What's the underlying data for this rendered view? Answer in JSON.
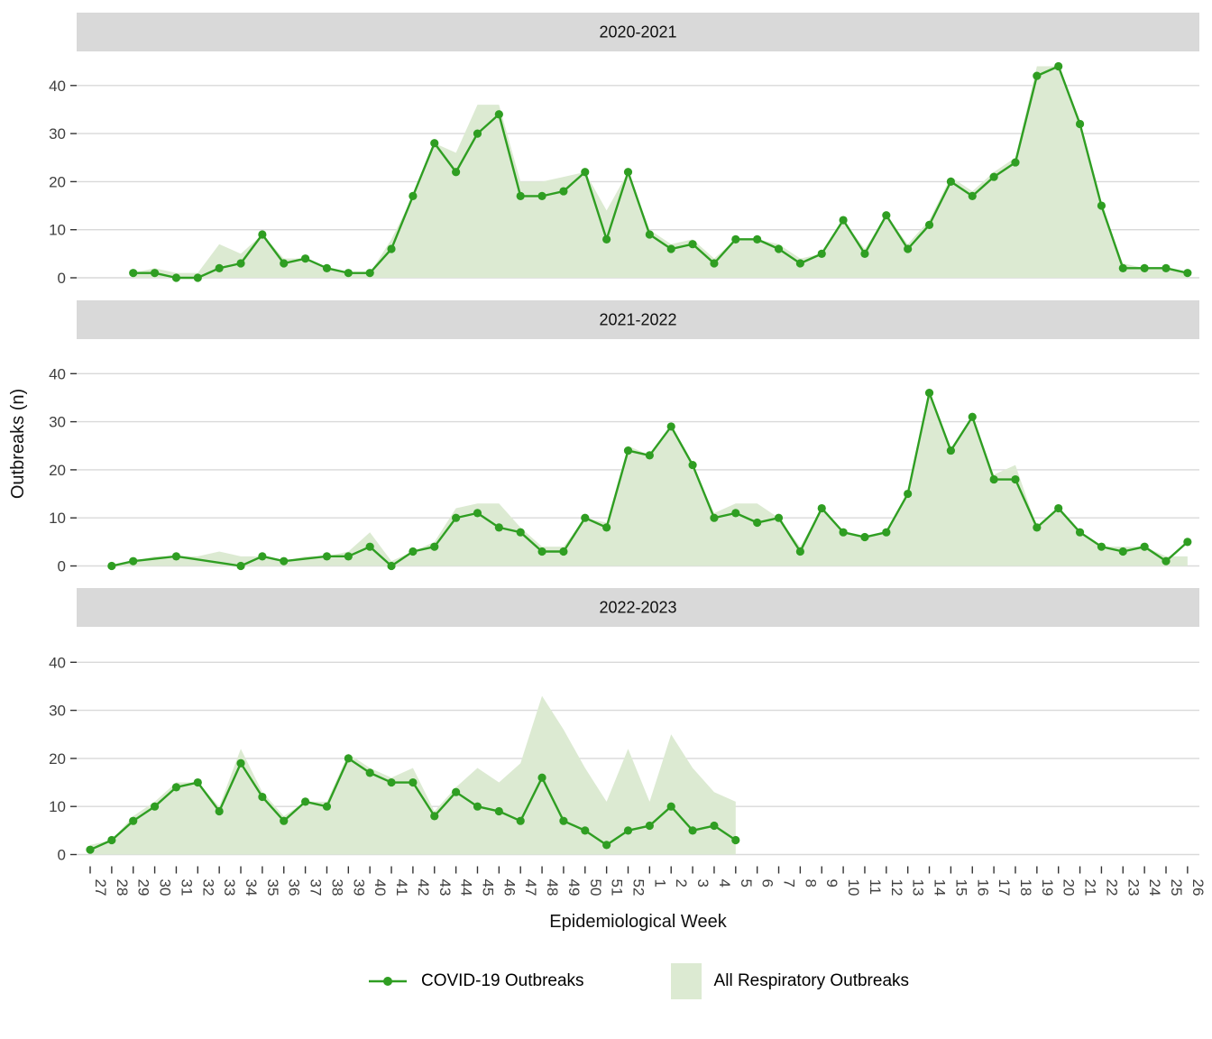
{
  "chart_data": {
    "type": "area+line",
    "facet_layout": "3 stacked panels sharing x axis",
    "xlabel": "Epidemiological Week",
    "ylabel": "Outbreaks (n)",
    "y_ticks": [
      0,
      10,
      20,
      30,
      40
    ],
    "ylim": [
      0,
      47
    ],
    "grid": "horizontal only",
    "x_categories": [
      "27",
      "28",
      "29",
      "30",
      "31",
      "32",
      "33",
      "34",
      "35",
      "36",
      "37",
      "38",
      "39",
      "40",
      "41",
      "42",
      "43",
      "44",
      "45",
      "46",
      "47",
      "48",
      "49",
      "50",
      "51",
      "52",
      "1",
      "2",
      "3",
      "4",
      "5",
      "6",
      "7",
      "8",
      "9",
      "10",
      "11",
      "12",
      "13",
      "14",
      "15",
      "16",
      "17",
      "18",
      "19",
      "20",
      "21",
      "22",
      "23",
      "24",
      "25",
      "26"
    ],
    "legend": {
      "position": "bottom",
      "covid_label": "COVID-19 Outbreaks",
      "area_label": "All Respiratory Outbreaks"
    },
    "colors": {
      "line": "#2f9e22",
      "point": "#2f9e22",
      "area": "#dcead2",
      "strip_bg": "#d9d9d9",
      "grid": "#d9d9d9",
      "tick": "#333333",
      "axis_text": "#404040",
      "title_text": "#111111"
    },
    "panels": [
      {
        "title": "2020-2021",
        "series": {
          "covid": [
            null,
            null,
            1,
            1,
            0,
            0,
            2,
            3,
            9,
            3,
            4,
            2,
            1,
            1,
            6,
            17,
            28,
            22,
            30,
            34,
            17,
            17,
            18,
            22,
            8,
            22,
            9,
            6,
            7,
            3,
            8,
            8,
            6,
            3,
            5,
            12,
            5,
            13,
            6,
            11,
            20,
            17,
            21,
            24,
            42,
            44,
            32,
            15,
            2,
            2,
            2,
            1
          ],
          "all_respiratory": [
            null,
            null,
            1,
            2,
            1,
            1,
            7,
            5,
            9,
            4,
            4,
            2,
            1,
            1,
            8,
            17,
            28,
            26,
            36,
            36,
            20,
            20,
            21,
            22,
            14,
            22,
            10,
            7,
            8,
            4,
            8,
            8,
            7,
            4,
            5,
            12,
            6,
            13,
            7,
            12,
            21,
            18,
            22,
            25,
            44,
            44,
            32,
            15,
            3,
            2,
            2,
            1
          ]
        }
      },
      {
        "title": "2021-2022",
        "series": {
          "covid": [
            null,
            0,
            1,
            null,
            2,
            null,
            null,
            0,
            2,
            1,
            null,
            2,
            2,
            4,
            0,
            3,
            4,
            10,
            11,
            8,
            7,
            3,
            3,
            10,
            8,
            24,
            23,
            29,
            21,
            10,
            11,
            9,
            10,
            3,
            12,
            7,
            6,
            7,
            15,
            36,
            24,
            31,
            18,
            18,
            8,
            12,
            7,
            4,
            3,
            4,
            1,
            5
          ],
          "all_respiratory": [
            null,
            0,
            1,
            2,
            2,
            2,
            3,
            2,
            2,
            1,
            2,
            2,
            3,
            7,
            1,
            3,
            5,
            12,
            13,
            13,
            8,
            4,
            4,
            10,
            9,
            25,
            23,
            29,
            21,
            11,
            13,
            13,
            10,
            4,
            12,
            7,
            6,
            7,
            15,
            36,
            24,
            31,
            19,
            21,
            8,
            12,
            7,
            4,
            4,
            4,
            2,
            2
          ]
        }
      },
      {
        "title": "2022-2023",
        "series": {
          "covid": [
            1,
            3,
            7,
            10,
            14,
            15,
            9,
            19,
            12,
            7,
            11,
            10,
            20,
            17,
            15,
            15,
            8,
            13,
            10,
            9,
            7,
            16,
            7,
            5,
            2,
            5,
            6,
            10,
            5,
            6,
            3,
            null,
            null,
            null,
            null,
            null,
            null,
            null,
            null,
            null,
            null,
            null,
            null,
            null,
            null,
            null,
            null,
            null,
            null,
            null,
            null,
            null
          ],
          "all_respiratory": [
            2,
            3,
            8,
            11,
            15,
            15,
            10,
            22,
            13,
            8,
            11,
            11,
            21,
            18,
            16,
            18,
            9,
            14,
            18,
            15,
            19,
            33,
            26,
            18,
            11,
            22,
            11,
            25,
            18,
            13,
            11,
            null,
            null,
            null,
            null,
            null,
            null,
            null,
            null,
            null,
            null,
            null,
            null,
            null,
            null,
            null,
            null,
            null,
            null,
            null,
            null,
            null
          ]
        }
      }
    ]
  }
}
